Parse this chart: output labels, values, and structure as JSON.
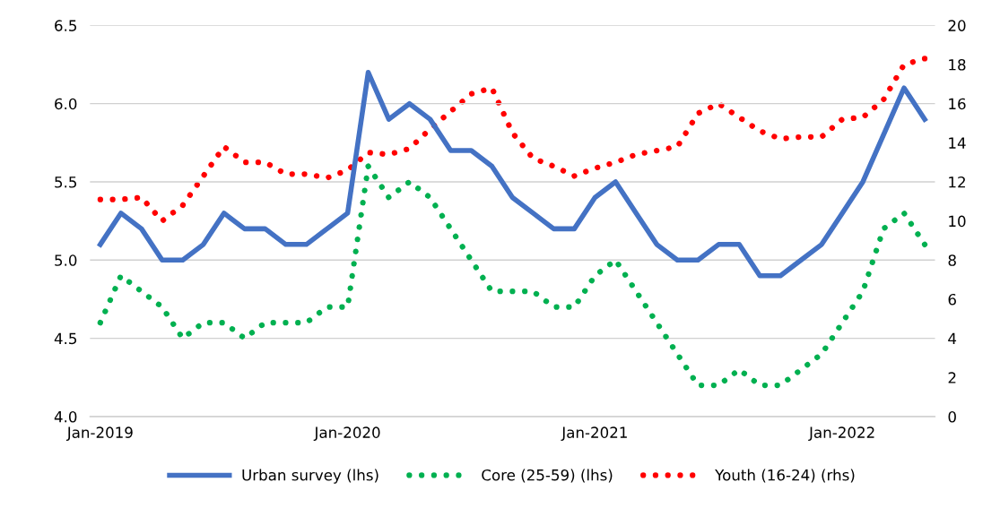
{
  "chart_data": {
    "type": "line",
    "categories": [
      "Jan-2019",
      null,
      null,
      null,
      null,
      null,
      null,
      null,
      null,
      null,
      null,
      null,
      "Jan-2020",
      null,
      null,
      null,
      null,
      null,
      null,
      null,
      null,
      null,
      null,
      null,
      "Jan-2021",
      null,
      null,
      null,
      null,
      null,
      null,
      null,
      null,
      null,
      null,
      null,
      "Jan-2022",
      null,
      null,
      null,
      null
    ],
    "series": [
      {
        "name": "Urban survey (lhs)",
        "color": "#4472c4",
        "line_style": "solid",
        "values": [
          5.1,
          5.3,
          5.2,
          5.0,
          5.0,
          5.1,
          5.3,
          5.2,
          5.2,
          5.1,
          5.1,
          5.2,
          5.3,
          6.2,
          5.9,
          6.0,
          5.9,
          5.7,
          5.7,
          5.6,
          5.4,
          5.3,
          5.2,
          5.2,
          5.4,
          5.5,
          5.3,
          5.1,
          5.0,
          5.0,
          5.1,
          5.1,
          4.9,
          4.9,
          5.0,
          5.1,
          5.3,
          5.5,
          5.8,
          6.1,
          5.9
        ]
      },
      {
        "name": "Core (25-59) (lhs)",
        "color": "#00b050",
        "line_style": "dotted",
        "values": [
          4.6,
          4.9,
          4.8,
          4.7,
          4.5,
          4.6,
          4.6,
          4.5,
          4.6,
          4.6,
          4.6,
          4.7,
          4.7,
          5.6,
          5.4,
          5.5,
          5.4,
          5.2,
          5.0,
          4.8,
          4.8,
          4.8,
          4.7,
          4.7,
          4.9,
          5.0,
          4.8,
          4.6,
          4.4,
          4.2,
          4.2,
          4.3,
          4.2,
          4.2,
          4.3,
          4.4,
          4.6,
          4.8,
          5.2,
          5.3,
          5.1
        ]
      },
      {
        "name": "Youth (16-24) (rhs)",
        "color": "#ff0000",
        "line_style": "dotted",
        "axis": "y2",
        "values": [
          11.1,
          11.1,
          11.2,
          10.0,
          10.8,
          12.3,
          13.8,
          13.0,
          13.0,
          12.4,
          12.4,
          12.2,
          12.6,
          13.5,
          13.4,
          13.7,
          14.7,
          15.6,
          16.5,
          16.8,
          14.5,
          13.2,
          12.8,
          12.3,
          12.7,
          13.0,
          13.4,
          13.6,
          13.8,
          15.5,
          16.0,
          15.3,
          14.6,
          14.2,
          14.3,
          14.3,
          15.2,
          15.3,
          16.2,
          18.0,
          18.3
        ]
      }
    ],
    "ylim": [
      4.0,
      6.5
    ],
    "yticks": [
      {
        "value": 4.0,
        "label": "4.0"
      },
      {
        "value": 4.5,
        "label": "4.5"
      },
      {
        "value": 5.0,
        "label": "5.0"
      },
      {
        "value": 5.5,
        "label": "5.5"
      },
      {
        "value": 6.0,
        "label": "6.0"
      },
      {
        "value": 6.5,
        "label": "6.5"
      }
    ],
    "y2lim": [
      0,
      20
    ],
    "y2ticks": [
      0,
      2,
      4,
      6,
      8,
      10,
      12,
      14,
      16,
      18,
      20
    ],
    "grid": "y",
    "legend": "bottom",
    "marker": "none"
  }
}
